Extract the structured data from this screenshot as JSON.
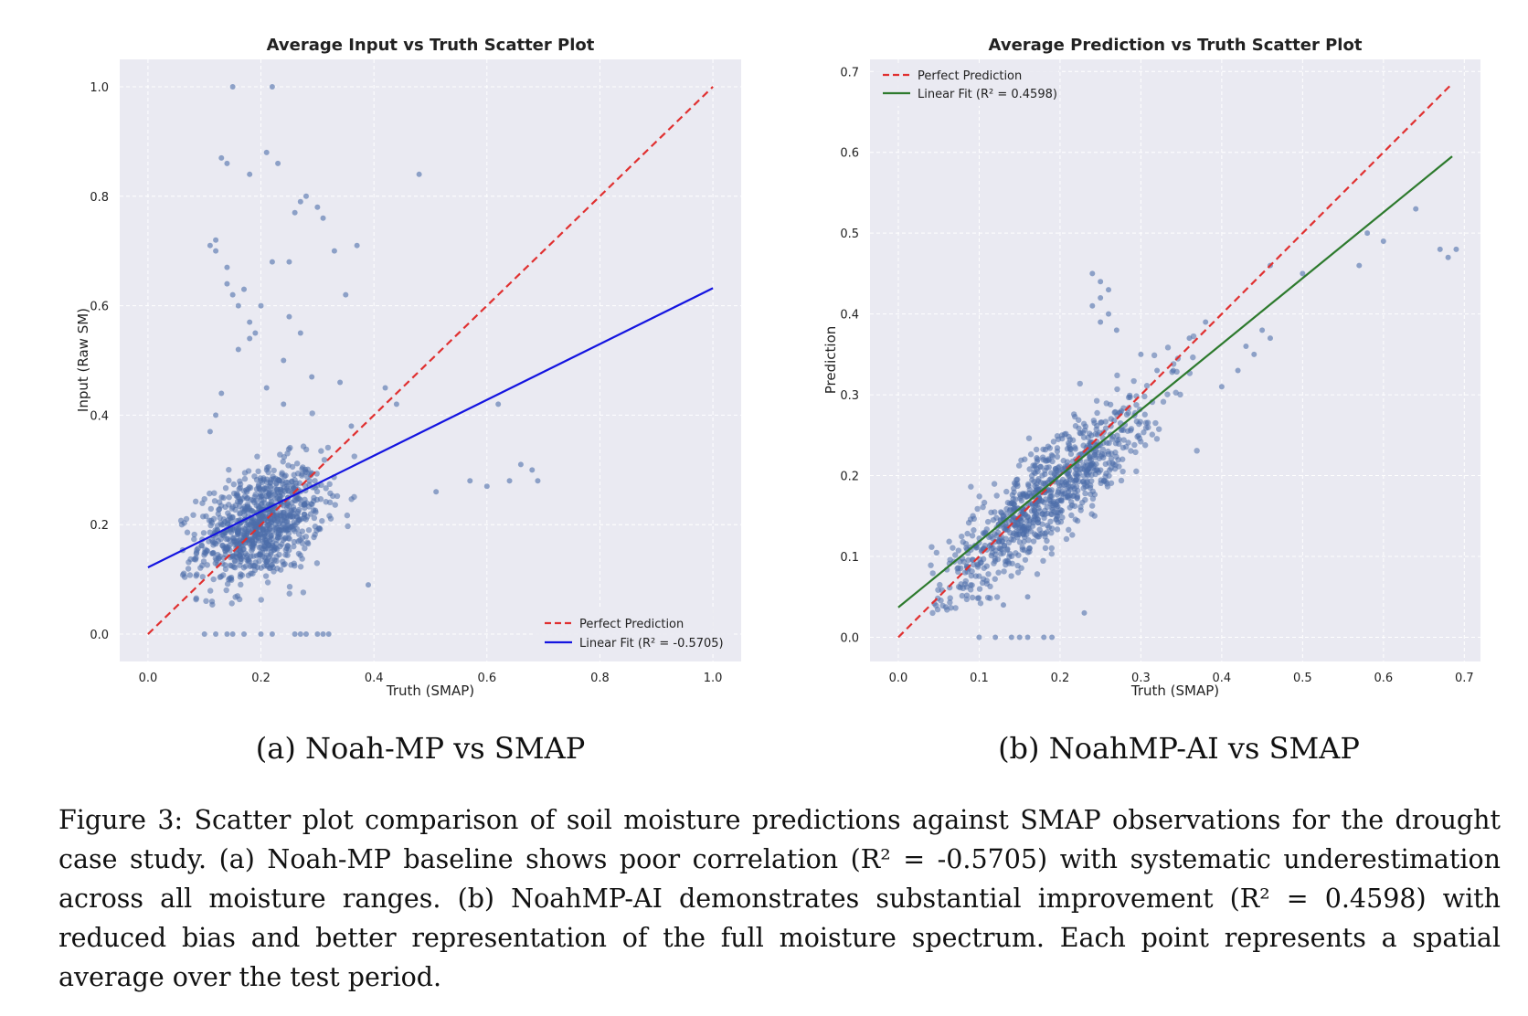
{
  "chart_data": [
    {
      "id": "a",
      "type": "scatter",
      "title": "Average Input vs Truth Scatter Plot",
      "xlabel": "Truth (SMAP)",
      "ylabel": "Input (Raw SM)",
      "xlim": [
        -0.05,
        1.05
      ],
      "ylim": [
        -0.05,
        1.05
      ],
      "xticks": [
        "0.0",
        "0.2",
        "0.4",
        "0.6",
        "0.8",
        "1.0"
      ],
      "yticks": [
        "0.0",
        "0.2",
        "0.4",
        "0.6",
        "0.8",
        "1.0"
      ],
      "grid": true,
      "legend_position": "lower-right",
      "colors": {
        "points": "#4c6eaa",
        "perfect": "#e03030",
        "fit": "#1414e0",
        "background": "#eaeaf2"
      },
      "legend": [
        "Perfect Prediction",
        "Linear Fit (R² = -0.5705)"
      ],
      "lines": {
        "perfect": [
          [
            0,
            0
          ],
          [
            1,
            1
          ]
        ],
        "fit": [
          [
            0,
            0.122
          ],
          [
            1,
            0.632
          ]
        ]
      },
      "cloud": {
        "description_n": 900,
        "center": [
          0.2,
          0.2
        ],
        "spread": [
          0.055,
          0.05
        ],
        "slope": 0.35
      },
      "series": [
        {
          "name": "outliers",
          "x": [
            0.15,
            0.22,
            0.21,
            0.23,
            0.18,
            0.13,
            0.14,
            0.12,
            0.11,
            0.12,
            0.14,
            0.2,
            0.22,
            0.25,
            0.26,
            0.27,
            0.28,
            0.3,
            0.31,
            0.33,
            0.35,
            0.27,
            0.25,
            0.24,
            0.16,
            0.18,
            0.21,
            0.24,
            0.29,
            0.34,
            0.37,
            0.48,
            0.42,
            0.44,
            0.62,
            0.66,
            0.68,
            0.57,
            0.6,
            0.64,
            0.69,
            0.51,
            0.39,
            0.36,
            0.1,
            0.12,
            0.14,
            0.15,
            0.17,
            0.26,
            0.27,
            0.28,
            0.3,
            0.31,
            0.32,
            0.2,
            0.22,
            0.14,
            0.15,
            0.16,
            0.17,
            0.18,
            0.19,
            0.13,
            0.12,
            0.11,
            0.21
          ],
          "y": [
            1.0,
            1.0,
            0.88,
            0.86,
            0.84,
            0.87,
            0.86,
            0.72,
            0.71,
            0.7,
            0.67,
            0.6,
            0.68,
            0.68,
            0.77,
            0.79,
            0.8,
            0.78,
            0.76,
            0.7,
            0.62,
            0.55,
            0.58,
            0.5,
            0.52,
            0.54,
            0.45,
            0.42,
            0.47,
            0.46,
            0.71,
            0.84,
            0.45,
            0.42,
            0.42,
            0.31,
            0.3,
            0.28,
            0.27,
            0.28,
            0.28,
            0.26,
            0.09,
            0.38,
            0.0,
            0.0,
            0.0,
            0.0,
            0.0,
            0.0,
            0.0,
            0.0,
            0.0,
            0.0,
            0.0,
            0.0,
            0.0,
            0.64,
            0.62,
            0.6,
            0.63,
            0.57,
            0.55,
            0.44,
            0.4,
            0.37,
            0.3
          ]
        }
      ]
    },
    {
      "id": "b",
      "type": "scatter",
      "title": "Average Prediction vs Truth Scatter Plot",
      "xlabel": "Truth (SMAP)",
      "ylabel": "Prediction",
      "xlim": [
        -0.035,
        0.72
      ],
      "ylim": [
        -0.03,
        0.715
      ],
      "xticks": [
        "0.0",
        "0.1",
        "0.2",
        "0.3",
        "0.4",
        "0.5",
        "0.6",
        "0.7"
      ],
      "yticks": [
        "0.0",
        "0.1",
        "0.2",
        "0.3",
        "0.4",
        "0.5",
        "0.6",
        "0.7"
      ],
      "grid": true,
      "legend_position": "upper-left",
      "colors": {
        "points": "#4c6eaa",
        "perfect": "#e03030",
        "fit": "#2d7a2d",
        "background": "#eaeaf2"
      },
      "legend": [
        "Perfect Prediction",
        "Linear Fit (R² = 0.4598)"
      ],
      "lines": {
        "perfect": [
          [
            0,
            0
          ],
          [
            0.685,
            0.685
          ]
        ],
        "fit": [
          [
            0,
            0.037
          ],
          [
            0.685,
            0.595
          ]
        ]
      },
      "cloud": {
        "description_n": 900,
        "center": [
          0.18,
          0.17
        ],
        "spread": [
          0.07,
          0.03
        ],
        "slope": 0.85
      },
      "series": [
        {
          "name": "outliers",
          "x": [
            0.24,
            0.25,
            0.26,
            0.25,
            0.24,
            0.26,
            0.25,
            0.27,
            0.1,
            0.12,
            0.14,
            0.15,
            0.16,
            0.18,
            0.19,
            0.23,
            0.57,
            0.58,
            0.64,
            0.67,
            0.68,
            0.69,
            0.6,
            0.5,
            0.46,
            0.45,
            0.43,
            0.42,
            0.44,
            0.46,
            0.38,
            0.36,
            0.34,
            0.4,
            0.32,
            0.3,
            0.13,
            0.16
          ],
          "y": [
            0.45,
            0.44,
            0.43,
            0.42,
            0.41,
            0.4,
            0.39,
            0.38,
            0.0,
            0.0,
            0.0,
            0.0,
            0.0,
            0.0,
            0.0,
            0.03,
            0.46,
            0.5,
            0.53,
            0.48,
            0.47,
            0.48,
            0.49,
            0.45,
            0.46,
            0.38,
            0.36,
            0.33,
            0.35,
            0.37,
            0.39,
            0.37,
            0.33,
            0.31,
            0.33,
            0.35,
            0.04,
            0.05
          ]
        }
      ]
    }
  ],
  "subcaptions": {
    "a": "(a) Noah-MP vs SMAP",
    "b": "(b) NoahMP-AI vs SMAP"
  },
  "caption": "Figure 3: Scatter plot comparison of soil moisture predictions against SMAP observations for the drought case study. (a) Noah-MP baseline shows poor correlation (R² = -0.5705) with systematic underestimation across all moisture ranges. (b) NoahMP-AI demonstrates substantial improvement (R² = 0.4598) with reduced bias and better representation of the full moisture spectrum. Each point represents a spatial average over the test period."
}
